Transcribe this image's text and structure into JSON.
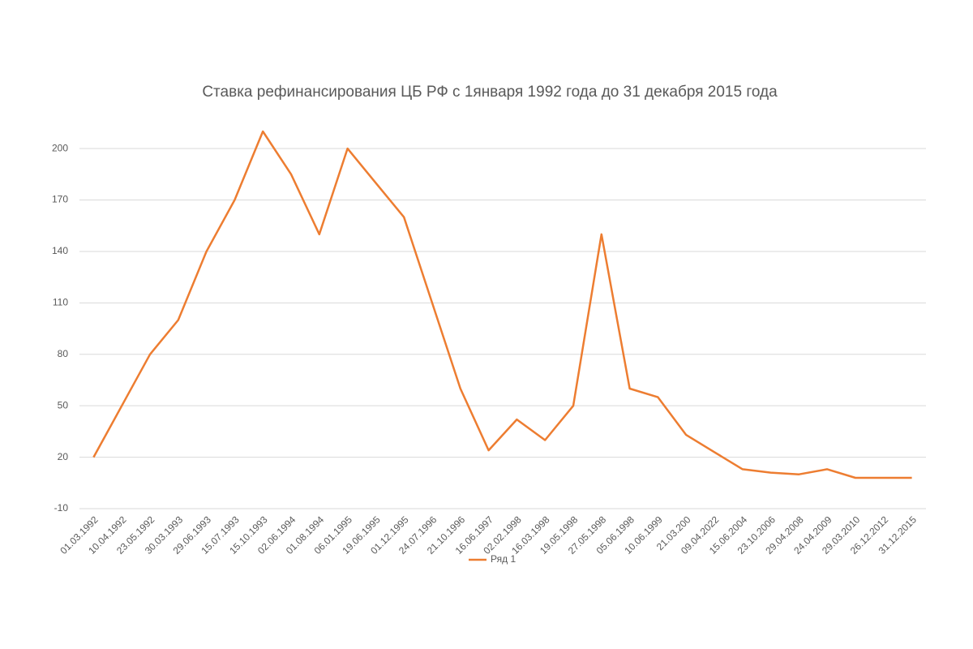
{
  "chart_data": {
    "type": "line",
    "title": "Ставка рефинансирования ЦБ РФ с 1января 1992 года до 31 декабря 2015 года",
    "categories": [
      "01.03.1992",
      "10.04.1992",
      "23.05.1992",
      "30.03.1993",
      "29.06.1993",
      "15.07.1993",
      "15.10.1993",
      "02.06.1994",
      "01.08.1994",
      "06.01.1995",
      "19.06.1995",
      "01.12.1995",
      "24.07.1996",
      "21.10.1996",
      "16.06.1997",
      "02.02.1998",
      "16.03.1998",
      "19.05.1998",
      "27.05.1998",
      "05.06.1998",
      "10.06.1999",
      "21.03.200",
      "09.04.2022",
      "15.06.2004",
      "23.10.2006",
      "29.04.2008",
      "24.04.2009",
      "29.03.2010",
      "26.12.2012",
      "31.12.2015"
    ],
    "series": [
      {
        "name": "Ряд 1",
        "color": "#ed7d31",
        "values": [
          20,
          50,
          80,
          100,
          140,
          170,
          210,
          185,
          150,
          200,
          180,
          160,
          110,
          60,
          24,
          42,
          30,
          50,
          150,
          60,
          55,
          33,
          23,
          13,
          11,
          10,
          13,
          8,
          8,
          8
        ]
      }
    ],
    "ylim": [
      -10,
      210
    ],
    "yticks": [
      -10,
      20,
      50,
      80,
      110,
      140,
      170,
      200
    ],
    "grid": true,
    "legend": "bottom"
  }
}
